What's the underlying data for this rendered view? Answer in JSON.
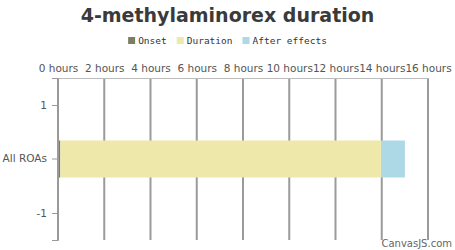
{
  "chart_data": {
    "type": "bar",
    "title": "4-methylaminorex duration",
    "orientation": "horizontal",
    "stacked": true,
    "legend": "top",
    "grid": true,
    "categories": [
      "All ROAs"
    ],
    "series": [
      {
        "name": "Onset",
        "color": "#7d7d64",
        "values": [
          0.1
        ]
      },
      {
        "name": "Duration",
        "color": "#eee8aa",
        "values": [
          13.9
        ]
      },
      {
        "name": "After effects",
        "color": "#add8e6",
        "values": [
          1
        ]
      }
    ],
    "xlim": [
      0,
      16
    ],
    "xticks": [
      {
        "value": 0,
        "label": "0 hours"
      },
      {
        "value": 2,
        "label": "2 hours"
      },
      {
        "value": 4,
        "label": "4 hours"
      },
      {
        "value": 6,
        "label": "6 hours"
      },
      {
        "value": 8,
        "label": "8 hours"
      },
      {
        "value": 10,
        "label": "10 hours"
      },
      {
        "value": 12,
        "label": "12 hours"
      },
      {
        "value": 14,
        "label": "14 hours"
      },
      {
        "value": 16,
        "label": "16 hours"
      }
    ],
    "ylim": [
      -1.5,
      1.5
    ],
    "yticks": [
      -1,
      1
    ],
    "credit": "CanvasJS.com"
  }
}
